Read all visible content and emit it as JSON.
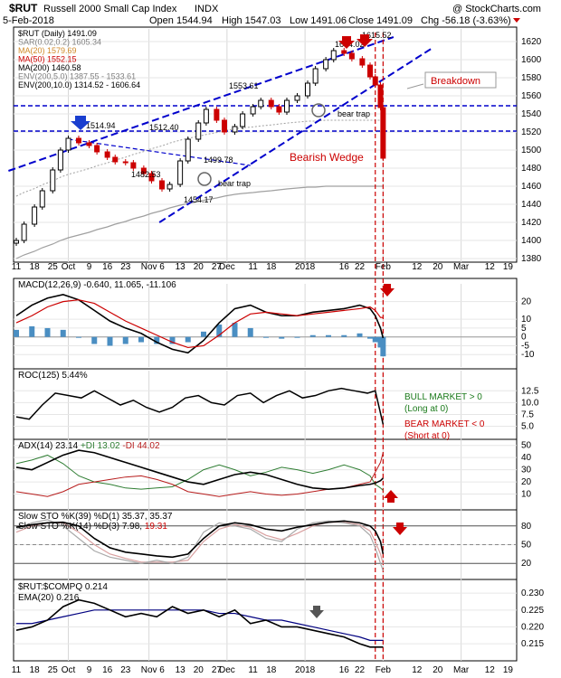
{
  "header": {
    "symbol": "$RUT",
    "name": "Russell 2000 Small Cap Index",
    "exchange": "INDX",
    "watermark": "@ StockCharts.com",
    "date": "5-Feb-2018",
    "open": "Open 1544.94",
    "high": "High 1547.03",
    "low": "Low 1491.06",
    "close": "Close 1491.09",
    "chg": "Chg -56.18 (-3.63%)"
  },
  "colors": {
    "up": "#000000",
    "down": "#cc0000",
    "ma20": "#e8b070",
    "ma50": "#cc0000",
    "ma200": "#a0a0a0",
    "trend": "#0000cc",
    "env": "#a0a0a0",
    "macd_hist": "#4a8ec2",
    "ema": "#000080",
    "pdi": "#2e7d32",
    "mdi": "#b71c1c"
  },
  "price_legend": [
    {
      "text": "$RUT (Daily) 1491.09",
      "color": "#000000"
    },
    {
      "text": "SAR(0.02,0.2) 1605.34",
      "color": "#808080"
    },
    {
      "text": "MA(20) 1579.69",
      "color": "#d08a2a"
    },
    {
      "text": "MA(50) 1552.15",
      "color": "#cc0000"
    },
    {
      "text": "MA(200) 1460.58",
      "color": "#000000"
    },
    {
      "text": "ENV(200,5.0) 1387.55 - 1533.61",
      "color": "#808080"
    },
    {
      "text": "ENV(200,10.0) 1314.52 - 1606.64",
      "color": "#000000"
    }
  ],
  "annotations": {
    "breakdown": "Breakdown",
    "bearish_wedge": "Bearish Wedge",
    "bear_trap_1": "bear trap",
    "bear_trap_2": "bear trap",
    "label_1514": "1514.94",
    "label_1512": "1512.40",
    "label_1482": "1482.53",
    "label_1454": "1454.17",
    "label_1499": "1499.78",
    "label_1553": "1553.61",
    "label_1604": "1604.02",
    "label_1615": "1615.52",
    "bull_market": "BULL MARKET > 0",
    "bull_market_sub": "(Long at 0)",
    "bear_market": "BEAR MARKET < 0",
    "bear_market_sub": "(Short at 0)"
  },
  "panels": {
    "macd": "MACD(12,26,9) -0.640, 11.065, -11.106",
    "roc": "ROC(125) 5.44%",
    "adx_base": "ADX(14) 23.14",
    "adx_pdi": "+DI 13.02",
    "adx_mdi": "-DI 44.02",
    "sto1": "Slow STO %K(39) %D(1) 35.37, 35.37",
    "sto2_a": "Slow STO %K(14) %D(3) 7.98,",
    "sto2_b": "19.31",
    "ratio": "$RUT:$COMPQ 0.214",
    "ema": "EMA(20) 0.216"
  },
  "x_axis_labels": [
    "11",
    "18",
    "25",
    "Oct",
    "9",
    "16",
    "23",
    "Nov",
    "6",
    "13",
    "20",
    "27",
    "Dec",
    "11",
    "18",
    "2018",
    "16",
    "22",
    "Feb",
    "12",
    "20",
    "Mar",
    "12",
    "19"
  ],
  "x_axis_label_days": [
    0,
    7,
    14,
    20,
    28,
    35,
    42,
    51,
    56,
    63,
    70,
    77,
    81,
    91,
    98,
    111,
    126,
    132,
    141,
    154,
    162,
    171,
    182,
    189
  ],
  "month_days": [
    20,
    51,
    81,
    111,
    141,
    171
  ],
  "event_days": [
    138,
    141
  ],
  "chart_data": [
    {
      "type": "line",
      "title": "$RUT (Daily) 1491.09",
      "ylim": [
        1380,
        1630
      ],
      "y_ticks": [
        1380,
        1400,
        1420,
        1440,
        1460,
        1480,
        1500,
        1520,
        1540,
        1560,
        1580,
        1600,
        1620
      ],
      "x_days": [
        0,
        3,
        7,
        10,
        14,
        17,
        20,
        24,
        28,
        31,
        35,
        38,
        42,
        45,
        49,
        52,
        56,
        59,
        63,
        66,
        70,
        73,
        77,
        80,
        84,
        87,
        91,
        94,
        98,
        101,
        104,
        108,
        112,
        115,
        119,
        122,
        126,
        129,
        133,
        136,
        138,
        140,
        141
      ],
      "close": [
        1400,
        1418,
        1437,
        1455,
        1478,
        1500,
        1513,
        1508,
        1505,
        1498,
        1492,
        1487,
        1486,
        1480,
        1474,
        1466,
        1457,
        1462,
        1488,
        1512,
        1530,
        1545,
        1533,
        1520,
        1526,
        1540,
        1548,
        1555,
        1548,
        1542,
        1555,
        1560,
        1574,
        1590,
        1600,
        1610,
        1607,
        1601,
        1594,
        1581,
        1572,
        1547,
        1491
      ],
      "ma200": [
        1380,
        1384,
        1388,
        1392,
        1396,
        1400,
        1403,
        1406,
        1409,
        1412,
        1415,
        1418,
        1421,
        1424,
        1427,
        1430,
        1433,
        1436,
        1439,
        1441,
        1443,
        1445,
        1447,
        1449,
        1451,
        1452,
        1453,
        1454,
        1455,
        1456,
        1457,
        1458,
        1459,
        1459,
        1460,
        1460,
        1460,
        1460,
        1460,
        1460,
        1460,
        1460,
        1460
      ],
      "trend_upper": [
        [
          -3,
          1477
        ],
        [
          145,
          1625
        ]
      ],
      "trend_lower": [
        [
          55,
          1420
        ],
        [
          160,
          1613
        ]
      ],
      "wedge": [
        [
          20,
          1512
        ],
        [
          90,
          1483
        ]
      ],
      "support": [
        1549,
        1521
      ]
    },
    {
      "type": "bar",
      "title": "MACD(12,26,9) -0.640, 11.065, -11.106",
      "ylim": [
        -15,
        28
      ],
      "y_ticks": [
        -10,
        -5,
        0,
        5,
        10,
        20
      ],
      "x_days": [
        0,
        6,
        12,
        18,
        24,
        30,
        36,
        42,
        48,
        54,
        60,
        66,
        72,
        78,
        84,
        90,
        96,
        102,
        108,
        114,
        120,
        126,
        132,
        136,
        138,
        140,
        141
      ],
      "macd": [
        12,
        18,
        22,
        24,
        21,
        15,
        9,
        5,
        2,
        -3,
        -7,
        -9,
        -2,
        8,
        16,
        18,
        14,
        12,
        12,
        14,
        15,
        16,
        18,
        16,
        12,
        5,
        -0.6
      ],
      "signal": [
        8,
        12,
        17,
        20,
        21,
        19,
        14,
        9,
        5,
        1,
        -3,
        -6,
        -5,
        1,
        8,
        13,
        14,
        13,
        12,
        13,
        14,
        15,
        16,
        17,
        15,
        11,
        11
      ],
      "hist": [
        4,
        6,
        5,
        4,
        0,
        -4,
        -5,
        -4,
        -3,
        -4,
        -4,
        -3,
        3,
        7,
        8,
        5,
        0,
        -1,
        0,
        1,
        1,
        1,
        2,
        -1,
        -3,
        -6,
        -11
      ]
    },
    {
      "type": "line",
      "title": "ROC(125) 5.44%",
      "ylim": [
        3,
        16
      ],
      "y_ticks": [
        5.0,
        7.5,
        10.0,
        12.5
      ],
      "x_days": [
        0,
        5,
        10,
        15,
        20,
        25,
        30,
        35,
        40,
        45,
        50,
        55,
        60,
        65,
        70,
        75,
        80,
        85,
        90,
        95,
        100,
        105,
        110,
        115,
        120,
        125,
        130,
        135,
        138,
        141
      ],
      "values": [
        7.0,
        6.5,
        9.5,
        12.0,
        11.5,
        11.0,
        12.5,
        11.0,
        9.5,
        10.5,
        9.0,
        8.0,
        9.0,
        11.0,
        11.5,
        10.0,
        9.5,
        11.5,
        12.0,
        10.0,
        11.5,
        12.5,
        11.0,
        11.5,
        12.5,
        13.0,
        12.5,
        12.0,
        12.5,
        5.4
      ]
    },
    {
      "type": "line",
      "title": "ADX(14) 23.14",
      "ylim": [
        0,
        52
      ],
      "y_ticks": [
        10,
        20,
        30,
        40,
        50
      ],
      "x_days": [
        0,
        6,
        12,
        18,
        24,
        30,
        36,
        42,
        48,
        54,
        60,
        66,
        72,
        78,
        84,
        90,
        96,
        102,
        108,
        114,
        120,
        126,
        132,
        136,
        138,
        140,
        141
      ],
      "adx": [
        32,
        30,
        36,
        42,
        46,
        44,
        40,
        36,
        32,
        28,
        24,
        20,
        18,
        22,
        26,
        28,
        26,
        22,
        18,
        15,
        14,
        15,
        17,
        18,
        19,
        21,
        23.1
      ],
      "pdi": [
        35,
        38,
        42,
        35,
        25,
        20,
        18,
        15,
        14,
        15,
        16,
        22,
        30,
        34,
        30,
        25,
        28,
        32,
        30,
        27,
        30,
        34,
        30,
        25,
        18,
        15,
        13
      ],
      "mdi": [
        12,
        10,
        8,
        12,
        18,
        20,
        22,
        24,
        25,
        22,
        18,
        12,
        10,
        8,
        10,
        12,
        10,
        9,
        10,
        12,
        14,
        15,
        18,
        20,
        28,
        36,
        44
      ]
    },
    {
      "type": "line",
      "title": "Slow STO",
      "ylim": [
        0,
        100
      ],
      "y_ticks": [
        20,
        50,
        80
      ],
      "x_days": [
        0,
        6,
        12,
        18,
        24,
        30,
        36,
        42,
        48,
        54,
        60,
        66,
        72,
        78,
        84,
        90,
        96,
        102,
        108,
        114,
        120,
        126,
        132,
        136,
        138,
        140,
        141
      ],
      "k39": [
        78,
        82,
        85,
        86,
        80,
        60,
        45,
        38,
        35,
        32,
        30,
        35,
        60,
        80,
        85,
        82,
        75,
        72,
        78,
        82,
        86,
        88,
        85,
        80,
        72,
        55,
        35
      ],
      "k14": [
        75,
        85,
        90,
        80,
        60,
        40,
        30,
        25,
        20,
        25,
        20,
        30,
        70,
        85,
        80,
        75,
        60,
        55,
        75,
        85,
        88,
        85,
        80,
        65,
        45,
        20,
        8
      ],
      "d3": [
        70,
        80,
        85,
        85,
        70,
        50,
        35,
        28,
        22,
        22,
        22,
        25,
        55,
        75,
        82,
        78,
        65,
        58,
        68,
        80,
        86,
        86,
        82,
        72,
        55,
        35,
        19
      ]
    },
    {
      "type": "line",
      "title": "$RUT:$COMPQ 0.214",
      "ylim": [
        0.211,
        0.233
      ],
      "y_ticks": [
        0.215,
        0.22,
        0.225,
        0.23
      ],
      "x_days": [
        0,
        6,
        12,
        18,
        24,
        30,
        36,
        42,
        48,
        54,
        60,
        66,
        72,
        78,
        84,
        90,
        96,
        102,
        108,
        114,
        120,
        126,
        132,
        136,
        138,
        140,
        141
      ],
      "ratio": [
        0.219,
        0.22,
        0.222,
        0.226,
        0.228,
        0.227,
        0.225,
        0.223,
        0.224,
        0.223,
        0.226,
        0.224,
        0.225,
        0.223,
        0.225,
        0.221,
        0.222,
        0.22,
        0.22,
        0.219,
        0.218,
        0.217,
        0.215,
        0.214,
        0.214,
        0.214,
        0.214
      ],
      "ema": [
        0.221,
        0.221,
        0.222,
        0.223,
        0.224,
        0.225,
        0.225,
        0.225,
        0.225,
        0.225,
        0.225,
        0.225,
        0.225,
        0.224,
        0.224,
        0.223,
        0.222,
        0.222,
        0.221,
        0.22,
        0.219,
        0.218,
        0.217,
        0.216,
        0.216,
        0.216,
        0.216
      ]
    }
  ]
}
